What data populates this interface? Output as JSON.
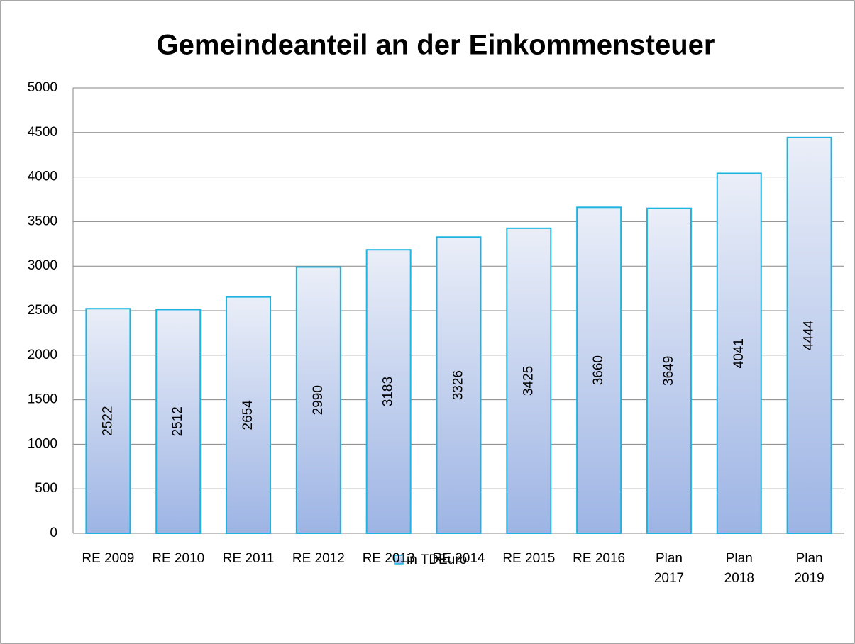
{
  "chart_data": {
    "type": "bar",
    "title": "Gemeindeanteil an der Einkommensteuer",
    "categories": [
      "RE 2009",
      "RE 2010",
      "RE 2011",
      "RE 2012",
      "RE 2013",
      "RE 2014",
      "RE 2015",
      "RE 2016",
      "Plan 2017",
      "Plan 2018",
      "Plan 2019"
    ],
    "series": [
      {
        "name": "in TDEuro",
        "color": "#1fb4e0",
        "values": [
          2522,
          2512,
          2654,
          2990,
          3183,
          3326,
          3425,
          3660,
          3649,
          4041,
          4444
        ]
      }
    ],
    "ylim": [
      0,
      5000
    ],
    "yticks": [
      0,
      500,
      1000,
      1500,
      2000,
      2500,
      3000,
      3500,
      4000,
      4500,
      5000
    ],
    "grid": true,
    "legend": "bottom"
  }
}
